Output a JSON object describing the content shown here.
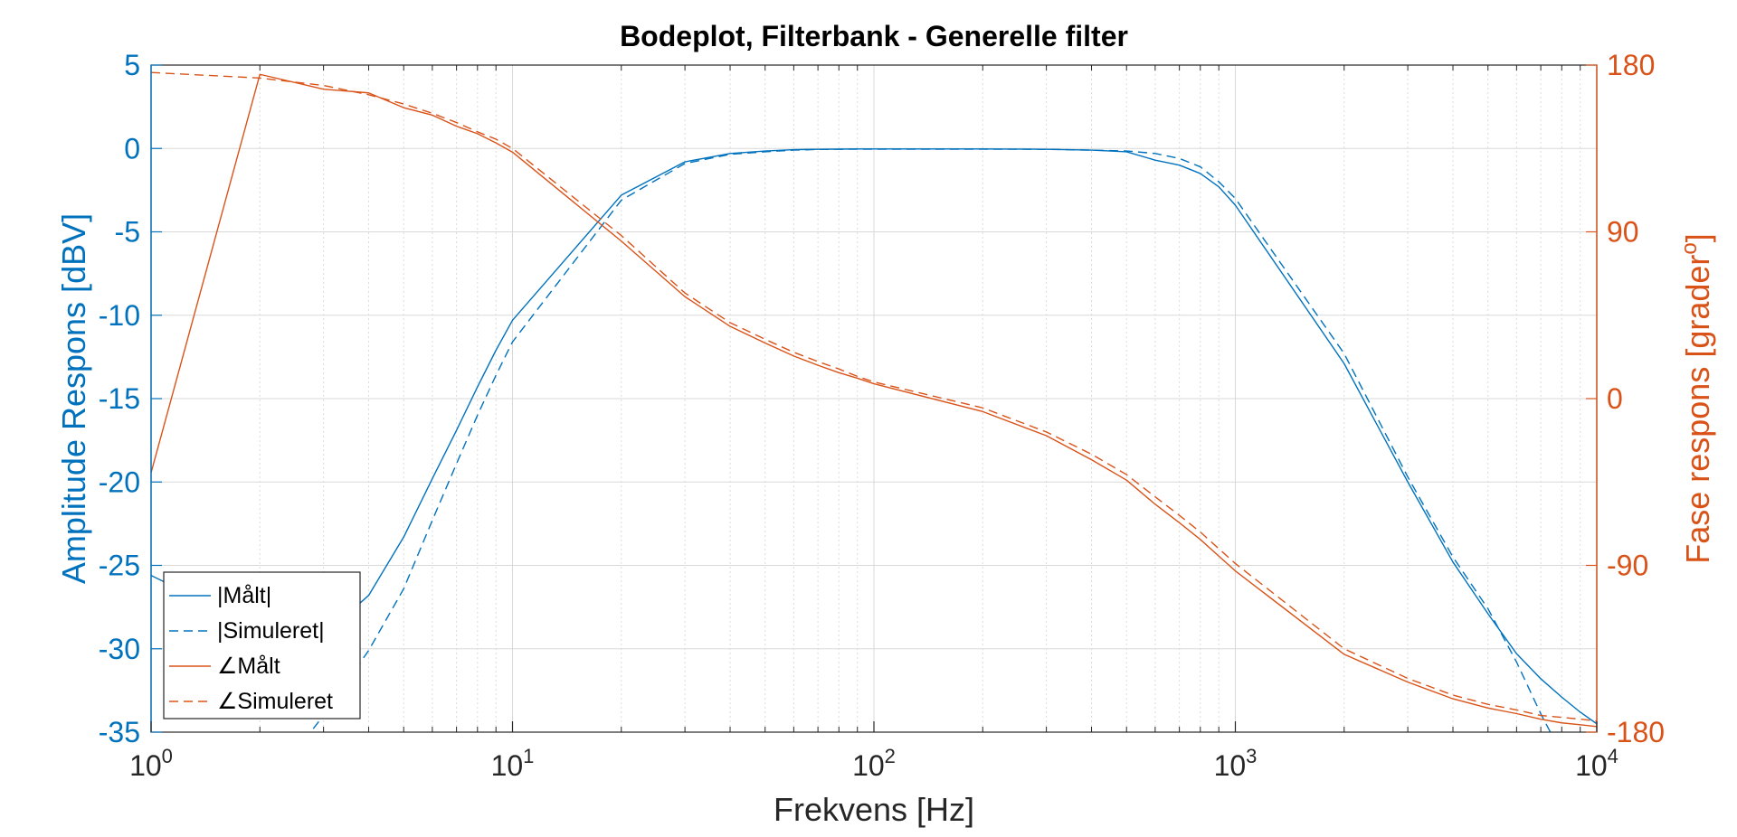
{
  "chart_data": {
    "type": "line",
    "title": "Bodeplot, Filterbank - Generelle filter",
    "xlabel": "Frekvens [Hz]",
    "ylabel_left": "Amplitude Respons [dBV]",
    "ylabel_right_text": "Fase respons [grader",
    "ylabel_right_sup": "o",
    "ylabel_right_close": "]",
    "x_scale": "log",
    "xlim": [
      1,
      10000
    ],
    "ylim_left": [
      -35,
      5
    ],
    "ylim_right": [
      -180,
      180
    ],
    "grid": true,
    "legend_position": "bottom-left",
    "x_ticks": [
      {
        "base": "10",
        "exp": "0",
        "value": 1
      },
      {
        "base": "10",
        "exp": "1",
        "value": 10
      },
      {
        "base": "10",
        "exp": "2",
        "value": 100
      },
      {
        "base": "10",
        "exp": "3",
        "value": 1000
      },
      {
        "base": "10",
        "exp": "4",
        "value": 10000
      }
    ],
    "y_ticks_left": [
      "5",
      "0",
      "-5",
      "-10",
      "-15",
      "-20",
      "-25",
      "-30",
      "-35"
    ],
    "y_ticks_right": [
      "180",
      "90",
      "0",
      "-90",
      "-180"
    ],
    "colors": {
      "amplitude": "#0072BD",
      "phase": "#D95319",
      "grid": "#d9d9d9",
      "axis": "#262626"
    },
    "series": [
      {
        "name": "|Målt|",
        "axis": "left",
        "style": "solid",
        "color": "#0072BD",
        "x": [
          1,
          2,
          3,
          4,
          5,
          6,
          7,
          8,
          9,
          10,
          20,
          30,
          40,
          50,
          60,
          70,
          80,
          90,
          100,
          200,
          300,
          400,
          500,
          600,
          700,
          800,
          900,
          1000,
          2000,
          3000,
          4000,
          5000,
          6000,
          7000,
          8000,
          9000,
          10000
        ],
        "y": [
          -25.6,
          -28.8,
          -29.2,
          -26.8,
          -23.3,
          -19.8,
          -16.9,
          -14.3,
          -12.1,
          -10.3,
          -2.8,
          -0.8,
          -0.3,
          -0.15,
          -0.07,
          -0.05,
          -0.04,
          -0.03,
          -0.03,
          -0.03,
          -0.05,
          -0.1,
          -0.2,
          -0.7,
          -1.0,
          -1.5,
          -2.3,
          -3.4,
          -12.9,
          -20.0,
          -24.8,
          -27.9,
          -30.3,
          -31.8,
          -32.9,
          -33.8,
          -34.5
        ]
      },
      {
        "name": "|Simuleret|",
        "axis": "left",
        "style": "dashed",
        "color": "#0072BD",
        "x": [
          2,
          3,
          4,
          5,
          6,
          7,
          8,
          9,
          10,
          20,
          30,
          40,
          50,
          60,
          70,
          80,
          90,
          100,
          200,
          300,
          400,
          500,
          600,
          700,
          800,
          900,
          1000,
          2000,
          3000,
          4000,
          5000,
          6000,
          7000,
          8000
        ],
        "y": [
          -38.9,
          -34.0,
          -30.1,
          -26.4,
          -22.3,
          -18.9,
          -16.0,
          -13.6,
          -11.6,
          -3.1,
          -0.9,
          -0.35,
          -0.2,
          -0.1,
          -0.06,
          -0.05,
          -0.04,
          -0.04,
          -0.04,
          -0.05,
          -0.1,
          -0.15,
          -0.3,
          -0.6,
          -1.1,
          -2.0,
          -3.0,
          -12.3,
          -19.7,
          -24.5,
          -27.6,
          -30.8,
          -33.9,
          -36.3
        ]
      },
      {
        "name": "∠Målt",
        "axis": "right",
        "style": "solid",
        "color": "#D95319",
        "x": [
          1,
          2,
          3,
          4,
          5,
          6,
          7,
          8,
          9,
          10,
          20,
          30,
          40,
          50,
          60,
          70,
          80,
          90,
          100,
          200,
          300,
          400,
          500,
          600,
          700,
          800,
          900,
          1000,
          2000,
          3000,
          4000,
          5000,
          6000,
          7000,
          8000,
          9000,
          10000
        ],
        "y": [
          -40,
          175,
          167,
          165,
          157,
          153,
          147,
          143,
          138,
          133,
          85,
          55,
          39,
          30,
          23,
          18,
          14,
          11,
          8,
          -7,
          -20,
          -33,
          -44,
          -57,
          -67,
          -76,
          -85,
          -93,
          -138,
          -153,
          -162,
          -167,
          -170,
          -173,
          -175,
          -176,
          -177
        ]
      },
      {
        "name": "∠Simuleret",
        "axis": "right",
        "style": "dashed",
        "color": "#D95319",
        "x": [
          1,
          2,
          3,
          4,
          5,
          6,
          7,
          8,
          9,
          10,
          20,
          30,
          40,
          50,
          60,
          70,
          80,
          90,
          100,
          200,
          300,
          400,
          500,
          600,
          700,
          800,
          900,
          1000,
          2000,
          3000,
          4000,
          5000,
          6000,
          7000,
          8000,
          9000,
          10000
        ],
        "y": [
          176,
          173,
          169,
          164,
          159,
          154,
          149,
          144,
          140,
          135,
          88,
          57,
          41,
          32,
          25,
          20,
          16,
          12,
          9,
          -5,
          -18,
          -30,
          -41,
          -53,
          -63,
          -72,
          -81,
          -89,
          -135,
          -151,
          -160,
          -165,
          -168,
          -171,
          -172,
          -173,
          -174
        ]
      }
    ]
  }
}
